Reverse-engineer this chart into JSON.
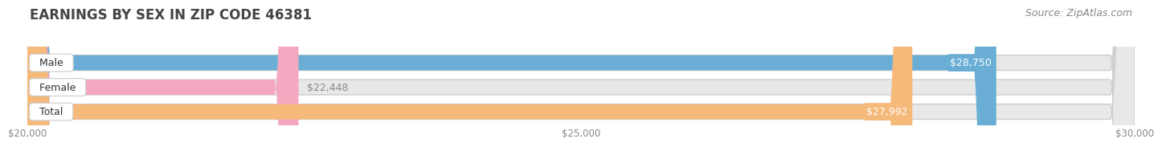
{
  "title": "EARNINGS BY SEX IN ZIP CODE 46381",
  "source": "Source: ZipAtlas.com",
  "categories": [
    "Male",
    "Female",
    "Total"
  ],
  "values": [
    28750,
    22448,
    27992
  ],
  "bar_colors": [
    "#6aaed6",
    "#f4a8c0",
    "#f5b97a"
  ],
  "label_colors": [
    "white",
    "#888888",
    "white"
  ],
  "label_texts": [
    "$28,750",
    "$22,448",
    "$27,992"
  ],
  "xlim": [
    20000,
    30000
  ],
  "xticks": [
    20000,
    25000,
    30000
  ],
  "xtick_labels": [
    "$20,000",
    "$25,000",
    "$30,000"
  ],
  "background_color": "#ffffff",
  "bar_background_color": "#e8e8e8",
  "bar_outer_color": "#d8d8d8",
  "title_fontsize": 12,
  "source_fontsize": 9,
  "label_fontsize": 9,
  "category_fontsize": 9
}
